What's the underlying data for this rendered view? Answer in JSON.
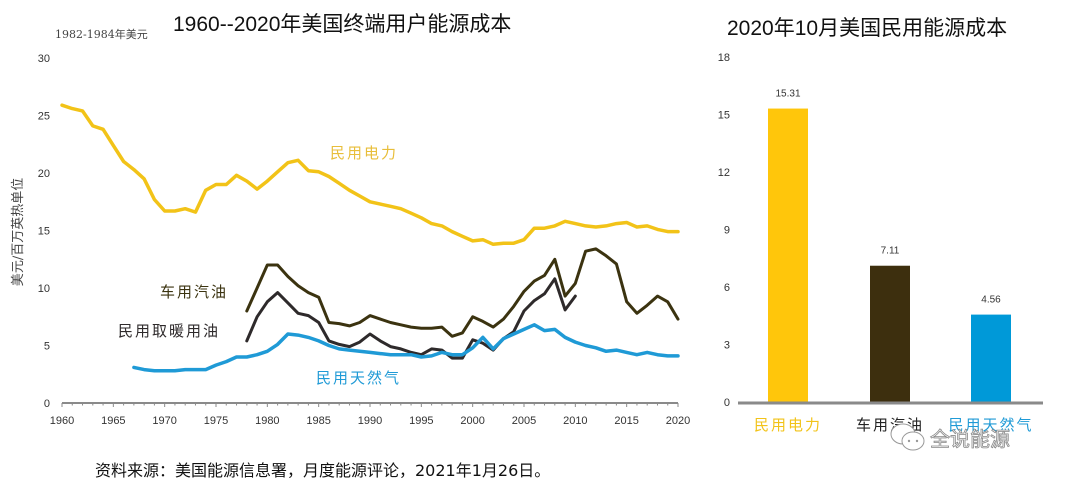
{
  "chart_data": [
    {
      "type": "line",
      "title": "1960--2020年美国终端用户能源成本",
      "unit_note": "1982-1984年美元",
      "xlabel": "",
      "ylabel": "美元/百万英热单位",
      "xlim": [
        1960,
        2020
      ],
      "ylim": [
        0,
        30
      ],
      "yticks": [
        0,
        5,
        10,
        15,
        20,
        25,
        30
      ],
      "xticks": [
        1960,
        1965,
        1970,
        1975,
        1980,
        1985,
        1990,
        1995,
        2000,
        2005,
        2010,
        2015,
        2020
      ],
      "grid": false,
      "series": [
        {
          "name": "民用电力",
          "color": "#F2C318",
          "points": [
            [
              1960,
              25.9
            ],
            [
              1961,
              25.6
            ],
            [
              1962,
              25.4
            ],
            [
              1963,
              24.1
            ],
            [
              1964,
              23.8
            ],
            [
              1965,
              22.4
            ],
            [
              1966,
              21.0
            ],
            [
              1967,
              20.3
            ],
            [
              1968,
              19.5
            ],
            [
              1969,
              17.7
            ],
            [
              1970,
              16.7
            ],
            [
              1971,
              16.7
            ],
            [
              1972,
              16.9
            ],
            [
              1973,
              16.6
            ],
            [
              1974,
              18.5
            ],
            [
              1975,
              19.0
            ],
            [
              1976,
              19.0
            ],
            [
              1977,
              19.8
            ],
            [
              1978,
              19.3
            ],
            [
              1979,
              18.6
            ],
            [
              1980,
              19.3
            ],
            [
              1981,
              20.1
            ],
            [
              1982,
              20.9
            ],
            [
              1983,
              21.1
            ],
            [
              1984,
              20.2
            ],
            [
              1985,
              20.1
            ],
            [
              1986,
              19.7
            ],
            [
              1987,
              19.1
            ],
            [
              1988,
              18.5
            ],
            [
              1989,
              18.0
            ],
            [
              1990,
              17.5
            ],
            [
              1991,
              17.3
            ],
            [
              1992,
              17.1
            ],
            [
              1993,
              16.9
            ],
            [
              1994,
              16.5
            ],
            [
              1995,
              16.1
            ],
            [
              1996,
              15.6
            ],
            [
              1997,
              15.4
            ],
            [
              1998,
              14.9
            ],
            [
              1999,
              14.5
            ],
            [
              2000,
              14.1
            ],
            [
              2001,
              14.2
            ],
            [
              2002,
              13.8
            ],
            [
              2003,
              13.9
            ],
            [
              2004,
              13.9
            ],
            [
              2005,
              14.2
            ],
            [
              2006,
              15.2
            ],
            [
              2007,
              15.2
            ],
            [
              2008,
              15.4
            ],
            [
              2009,
              15.8
            ],
            [
              2010,
              15.6
            ],
            [
              2011,
              15.4
            ],
            [
              2012,
              15.3
            ],
            [
              2013,
              15.4
            ],
            [
              2014,
              15.6
            ],
            [
              2015,
              15.7
            ],
            [
              2016,
              15.3
            ],
            [
              2017,
              15.4
            ],
            [
              2018,
              15.1
            ],
            [
              2019,
              14.9
            ],
            [
              2020,
              14.9
            ]
          ]
        },
        {
          "name": "车用汽油",
          "color": "#3B3310",
          "points": [
            [
              1978,
              8.0
            ],
            [
              1979,
              10.0
            ],
            [
              1980,
              12.0
            ],
            [
              1981,
              12.0
            ],
            [
              1982,
              11.0
            ],
            [
              1983,
              10.2
            ],
            [
              1984,
              9.6
            ],
            [
              1985,
              9.2
            ],
            [
              1986,
              7.0
            ],
            [
              1987,
              6.9
            ],
            [
              1988,
              6.7
            ],
            [
              1989,
              7.0
            ],
            [
              1990,
              7.6
            ],
            [
              1991,
              7.3
            ],
            [
              1992,
              7.0
            ],
            [
              1993,
              6.8
            ],
            [
              1994,
              6.6
            ],
            [
              1995,
              6.5
            ],
            [
              1996,
              6.5
            ],
            [
              1997,
              6.6
            ],
            [
              1998,
              5.8
            ],
            [
              1999,
              6.1
            ],
            [
              2000,
              7.5
            ],
            [
              2001,
              7.1
            ],
            [
              2002,
              6.6
            ],
            [
              2003,
              7.3
            ],
            [
              2004,
              8.4
            ],
            [
              2005,
              9.7
            ],
            [
              2006,
              10.6
            ],
            [
              2007,
              11.1
            ],
            [
              2008,
              12.5
            ],
            [
              2009,
              9.3
            ],
            [
              2010,
              10.4
            ],
            [
              2011,
              13.2
            ],
            [
              2012,
              13.4
            ],
            [
              2013,
              12.8
            ],
            [
              2014,
              12.1
            ],
            [
              2015,
              8.8
            ],
            [
              2016,
              7.8
            ],
            [
              2017,
              8.5
            ],
            [
              2018,
              9.3
            ],
            [
              2019,
              8.8
            ],
            [
              2020,
              7.3
            ]
          ]
        },
        {
          "name": "民用取暖用油",
          "color": "#2E2A2B",
          "points": [
            [
              1978,
              5.4
            ],
            [
              1979,
              7.5
            ],
            [
              1980,
              8.8
            ],
            [
              1981,
              9.6
            ],
            [
              1982,
              8.7
            ],
            [
              1983,
              7.8
            ],
            [
              1984,
              7.6
            ],
            [
              1985,
              7.0
            ],
            [
              1986,
              5.4
            ],
            [
              1987,
              5.1
            ],
            [
              1988,
              4.9
            ],
            [
              1989,
              5.3
            ],
            [
              1990,
              6.0
            ],
            [
              1991,
              5.4
            ],
            [
              1992,
              4.9
            ],
            [
              1993,
              4.7
            ],
            [
              1994,
              4.4
            ],
            [
              1995,
              4.2
            ],
            [
              1996,
              4.7
            ],
            [
              1997,
              4.6
            ],
            [
              1998,
              3.9
            ],
            [
              1999,
              3.9
            ],
            [
              2000,
              5.5
            ],
            [
              2001,
              5.2
            ],
            [
              2002,
              4.6
            ],
            [
              2003,
              5.6
            ],
            [
              2004,
              6.2
            ],
            [
              2005,
              8.0
            ],
            [
              2006,
              8.9
            ],
            [
              2007,
              9.5
            ],
            [
              2008,
              10.8
            ],
            [
              2009,
              8.1
            ],
            [
              2010,
              9.3
            ]
          ]
        },
        {
          "name": "民用天然气",
          "color": "#1F9AD6",
          "points": [
            [
              1967,
              3.1
            ],
            [
              1968,
              2.9
            ],
            [
              1969,
              2.8
            ],
            [
              1970,
              2.8
            ],
            [
              1971,
              2.8
            ],
            [
              1972,
              2.9
            ],
            [
              1973,
              2.9
            ],
            [
              1974,
              2.9
            ],
            [
              1975,
              3.3
            ],
            [
              1976,
              3.6
            ],
            [
              1977,
              4.0
            ],
            [
              1978,
              4.0
            ],
            [
              1979,
              4.2
            ],
            [
              1980,
              4.5
            ],
            [
              1981,
              5.1
            ],
            [
              1982,
              6.0
            ],
            [
              1983,
              5.9
            ],
            [
              1984,
              5.7
            ],
            [
              1985,
              5.4
            ],
            [
              1986,
              5.0
            ],
            [
              1987,
              4.7
            ],
            [
              1988,
              4.6
            ],
            [
              1989,
              4.5
            ],
            [
              1990,
              4.4
            ],
            [
              1991,
              4.3
            ],
            [
              1992,
              4.2
            ],
            [
              1993,
              4.2
            ],
            [
              1994,
              4.2
            ],
            [
              1995,
              4.0
            ],
            [
              1996,
              4.1
            ],
            [
              1997,
              4.4
            ],
            [
              1998,
              4.2
            ],
            [
              1999,
              4.2
            ],
            [
              2000,
              4.8
            ],
            [
              2001,
              5.7
            ],
            [
              2002,
              4.7
            ],
            [
              2003,
              5.6
            ],
            [
              2004,
              6.0
            ],
            [
              2005,
              6.4
            ],
            [
              2006,
              6.8
            ],
            [
              2007,
              6.3
            ],
            [
              2008,
              6.4
            ],
            [
              2009,
              5.7
            ],
            [
              2010,
              5.3
            ],
            [
              2011,
              5.0
            ],
            [
              2012,
              4.8
            ],
            [
              2013,
              4.5
            ],
            [
              2014,
              4.6
            ],
            [
              2015,
              4.4
            ],
            [
              2016,
              4.2
            ],
            [
              2017,
              4.4
            ],
            [
              2018,
              4.2
            ],
            [
              2019,
              4.1
            ],
            [
              2020,
              4.1
            ]
          ]
        }
      ],
      "annotations": [
        {
          "text": "民用电力",
          "series": "民用电力",
          "color": "#E8BE3A"
        },
        {
          "text": "车用汽油",
          "series": "车用汽油",
          "color": "#3B3310"
        },
        {
          "text": "民用取暖用油",
          "series": "民用取暖用油",
          "color": "#2E2A2B"
        },
        {
          "text": "民用天然气",
          "series": "民用天然气",
          "color": "#1F9AD6"
        }
      ]
    },
    {
      "type": "bar",
      "title": "2020年10月美国民用能源成本",
      "categories": [
        "民用电力",
        "车用汽油",
        "民用天然气"
      ],
      "values": [
        15.31,
        7.11,
        4.56
      ],
      "value_labels": [
        "15.31",
        "7.11",
        "4.56"
      ],
      "colors": [
        "#FFC60B",
        "#3D2F0E",
        "#0099D8"
      ],
      "label_colors": [
        "#F2C318",
        "#222222",
        "#1F9AD6"
      ],
      "xlabel": "",
      "ylabel": "",
      "ylim": [
        0,
        18
      ],
      "yticks": [
        0,
        3,
        6,
        9,
        12,
        15,
        18
      ],
      "grid": false
    }
  ],
  "footer": {
    "source": "资料来源：美国能源信息署，月度能源评论，2021年1月26日。"
  },
  "watermark": {
    "text": "全说能源",
    "icon": "wechat-icon"
  }
}
